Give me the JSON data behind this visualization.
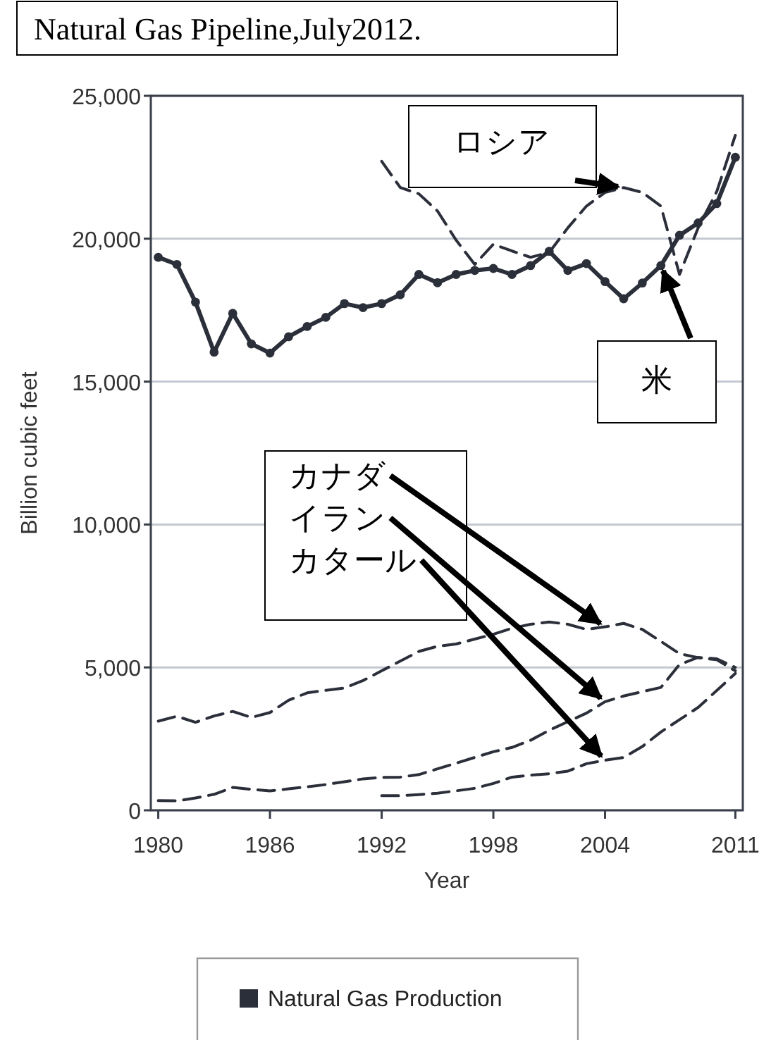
{
  "chart_data": {
    "type": "line",
    "title": "Natural Gas Pipeline,July2012.",
    "xlabel": "Year",
    "ylabel": "Billion cubic feet",
    "xlim": [
      1979.6,
      2011.4
    ],
    "xticks": [
      1980,
      1986,
      1992,
      1998,
      2004,
      2011
    ],
    "ylim": [
      0,
      25000
    ],
    "yticks": [
      0,
      {
        "value": 5000,
        "label": "5,000"
      },
      {
        "value": 10000,
        "label": "10,000"
      },
      {
        "value": 15000,
        "label": "15,000"
      },
      {
        "value": 20000,
        "label": "20,000"
      },
      {
        "value": 25000,
        "label": "25,000"
      }
    ],
    "grid": "y",
    "legend": "bottom",
    "series": [
      {
        "name": "Natural Gas Production",
        "color": "#2b2f3a",
        "marker": "circle",
        "line_style": "solid",
        "x": [
          1980,
          1981,
          1982,
          1983,
          1984,
          1985,
          1986,
          1987,
          1988,
          1989,
          1990,
          1991,
          1992,
          1993,
          1994,
          1995,
          1996,
          1997,
          1998,
          1999,
          2000,
          2001,
          2002,
          2003,
          2004,
          2005,
          2006,
          2007,
          2008,
          2009,
          2010,
          2011
        ],
        "values": [
          19350,
          19100,
          17780,
          16030,
          17390,
          16320,
          16000,
          16570,
          16930,
          17250,
          17730,
          17590,
          17730,
          18040,
          18750,
          18460,
          18750,
          18890,
          18960,
          18750,
          19060,
          19560,
          18890,
          19130,
          18500,
          17900,
          18450,
          19060,
          20120,
          20550,
          21230,
          22850
        ]
      },
      {
        "color": "#2b2f3a",
        "marker": "none",
        "line_style": "dashed",
        "x": [
          1992,
          1993,
          1994,
          1995,
          1996,
          1997,
          1998,
          1999,
          2000,
          2001,
          2002,
          2003,
          2004,
          2005,
          2006,
          2007,
          2008,
          2009,
          2010,
          2011
        ],
        "values": [
          22710,
          21790,
          21570,
          20970,
          19950,
          19100,
          19810,
          19570,
          19350,
          19520,
          20380,
          21140,
          21620,
          21790,
          21620,
          21140,
          18750,
          20380,
          21650,
          23620
        ]
      },
      {
        "color": "#2b2f3a",
        "marker": "none",
        "line_style": "dashed",
        "x": [
          1980,
          1981,
          1982,
          1983,
          1984,
          1985,
          1986,
          1987,
          1988,
          1989,
          1990,
          1991,
          1992,
          1993,
          1994,
          1995,
          1996,
          1997,
          1998,
          1999,
          2000,
          2001,
          2002,
          2003,
          2004,
          2005,
          2006,
          2007,
          2008,
          2009,
          2010,
          2011
        ],
        "values": [
          3120,
          3290,
          3080,
          3300,
          3460,
          3250,
          3420,
          3850,
          4110,
          4200,
          4280,
          4540,
          4880,
          5220,
          5560,
          5740,
          5820,
          5990,
          6160,
          6370,
          6510,
          6590,
          6510,
          6330,
          6420,
          6540,
          6330,
          5910,
          5480,
          5340,
          5270,
          4880
        ]
      },
      {
        "color": "#2b2f3a",
        "marker": "none",
        "line_style": "dashed",
        "x": [
          1980,
          1981,
          1982,
          1983,
          1984,
          1985,
          1986,
          1987,
          1988,
          1989,
          1990,
          1991,
          1992,
          1993,
          1994,
          1995,
          1996,
          1997,
          1998,
          1999,
          2000,
          2001,
          2002,
          2003,
          2004,
          2005,
          2006,
          2007,
          2008,
          2009,
          2010,
          2011
        ],
        "values": [
          340,
          330,
          430,
          560,
          800,
          730,
          680,
          750,
          820,
          900,
          1000,
          1100,
          1150,
          1160,
          1250,
          1450,
          1650,
          1850,
          2050,
          2200,
          2450,
          2800,
          3100,
          3400,
          3800,
          4000,
          4150,
          4300,
          5100,
          5350,
          5300,
          5000
        ]
      },
      {
        "color": "#2b2f3a",
        "marker": "none",
        "line_style": "dashed",
        "x": [
          1992,
          1993,
          1994,
          1995,
          1996,
          1997,
          1998,
          1999,
          2000,
          2001,
          2002,
          2003,
          2004,
          2005,
          2006,
          2007,
          2008,
          2009,
          2010,
          2011
        ],
        "values": [
          510,
          510,
          550,
          600,
          680,
          770,
          940,
          1160,
          1230,
          1280,
          1370,
          1630,
          1750,
          1850,
          2230,
          2740,
          3170,
          3600,
          4190,
          4790
        ]
      }
    ],
    "annotations": [
      {
        "text": "ロシア",
        "x": 2005,
        "y": 21790
      },
      {
        "text": "米",
        "x": 2007,
        "y": 19060
      },
      {
        "text": "カナダ",
        "x": 2004,
        "y": 6420
      },
      {
        "text": "イラン",
        "x": 2004,
        "y": 3800
      },
      {
        "text": "カタール",
        "x": 2004,
        "y": 1750
      }
    ]
  }
}
